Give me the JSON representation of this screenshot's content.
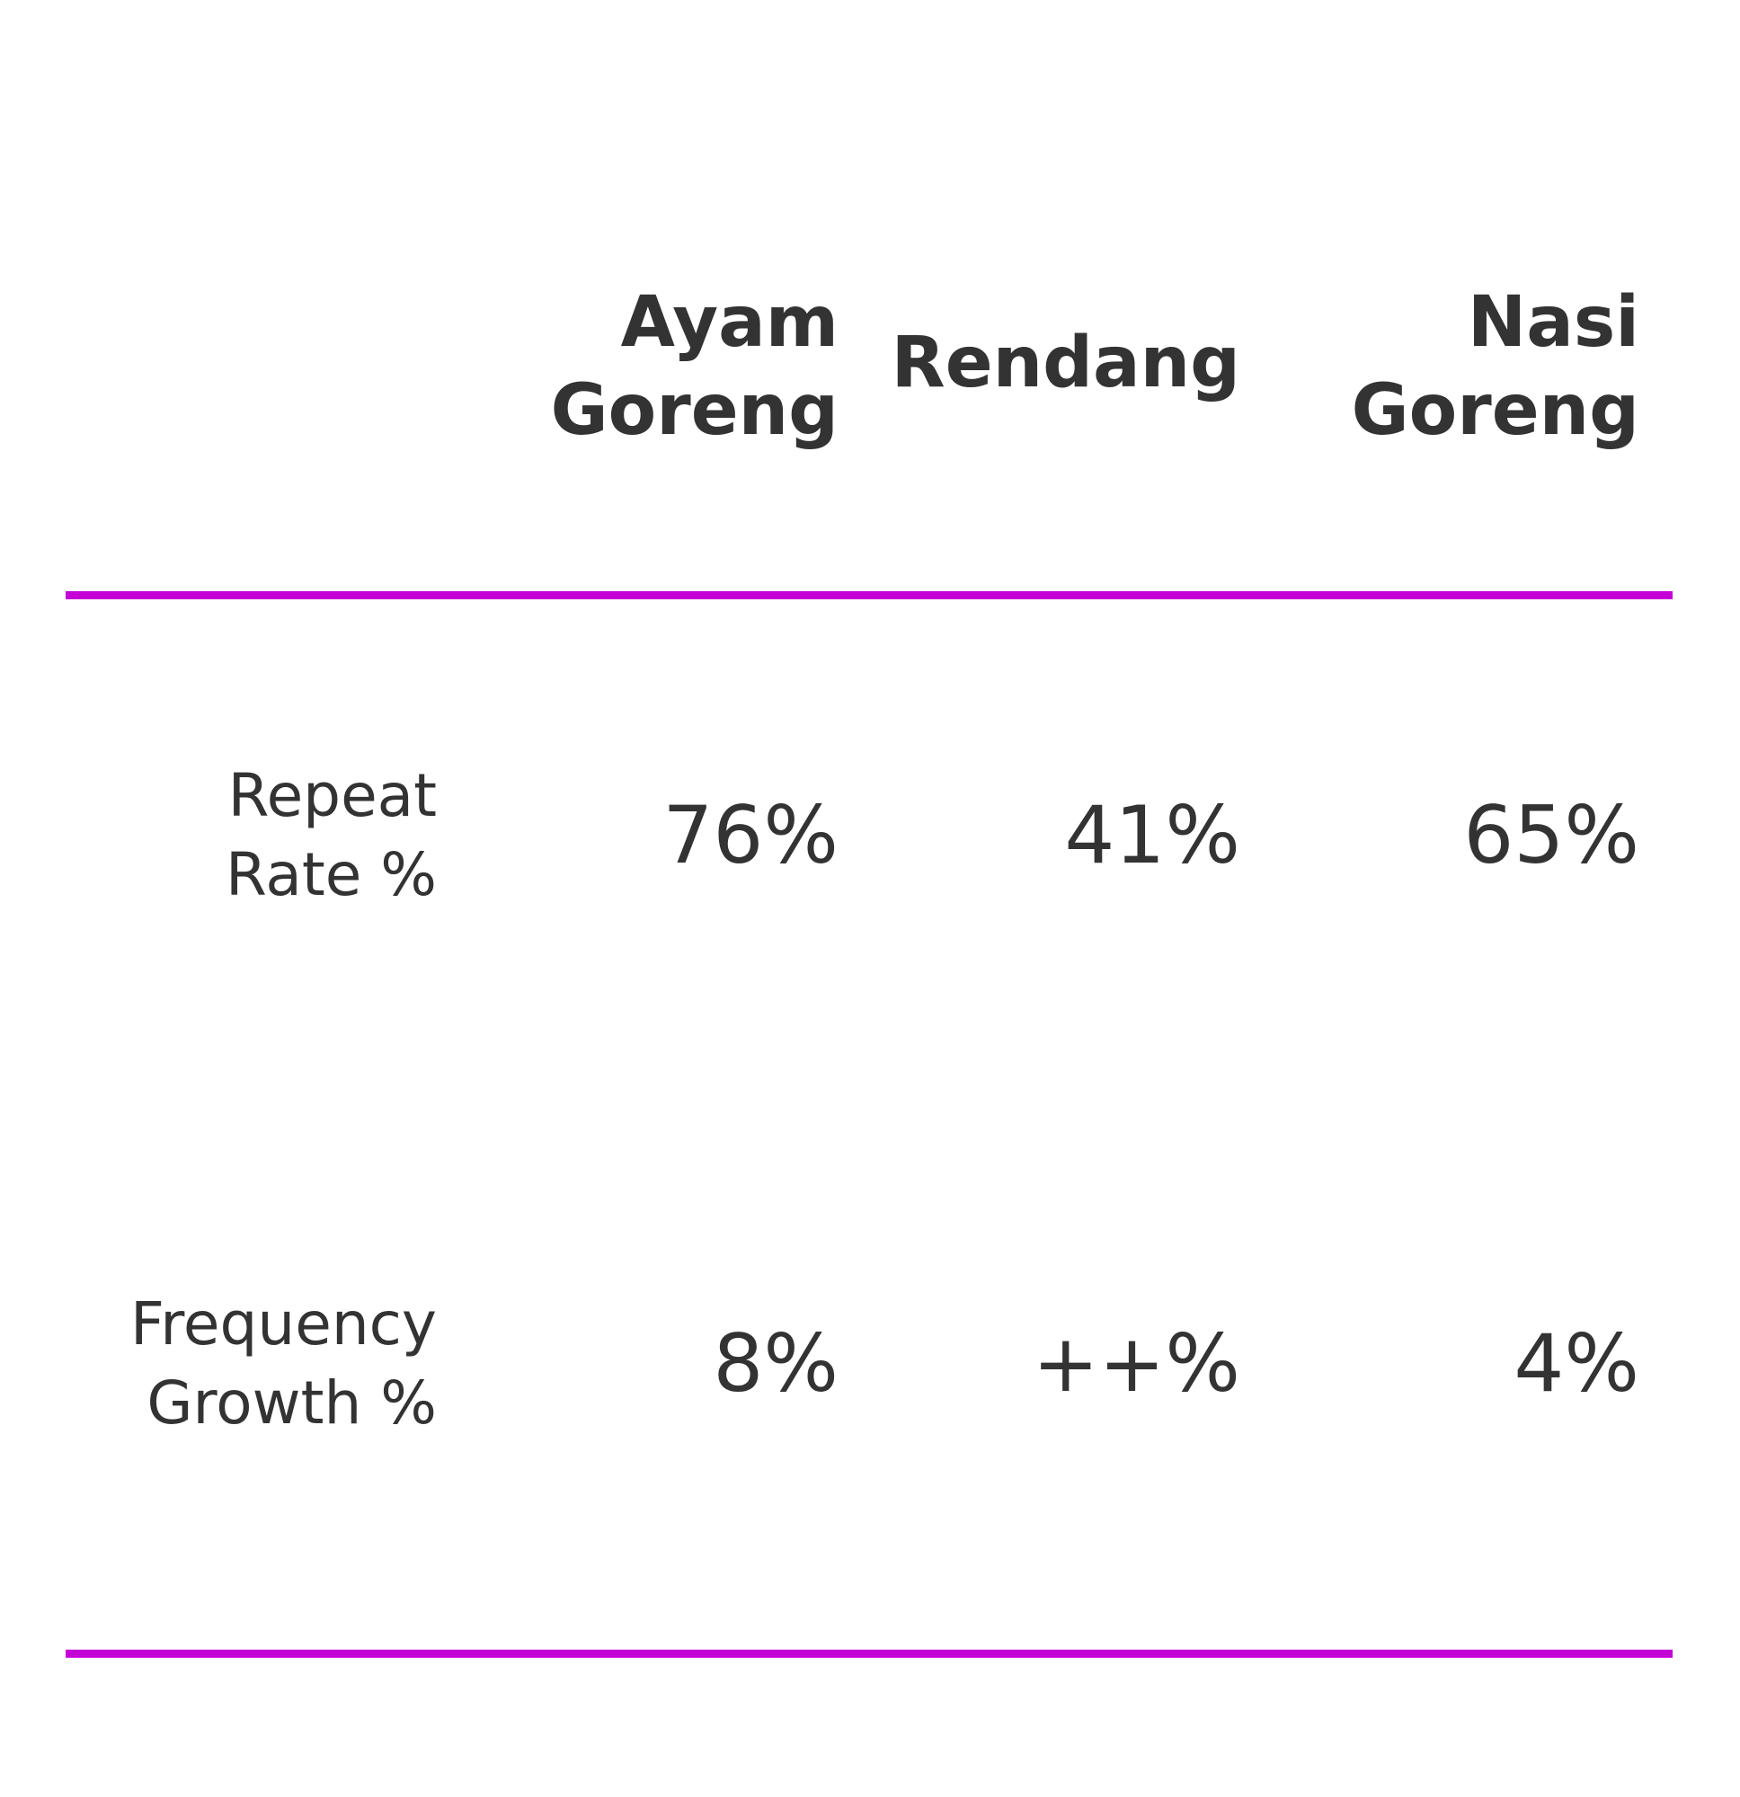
{
  "chart_data": {
    "type": "table",
    "columns": [
      {
        "line1": "Ayam",
        "line2": "Goreng"
      },
      {
        "line1": "Rendang",
        "line2": ""
      },
      {
        "line1": "Nasi",
        "line2": "Goreng"
      }
    ],
    "rows": [
      {
        "line1": "Repeat",
        "line2": "Rate %",
        "values": [
          "76%",
          "41%",
          "65%"
        ]
      },
      {
        "line1": "Frequency",
        "line2": "Growth %",
        "values": [
          "8%",
          "++%",
          "4%"
        ]
      }
    ]
  },
  "colors": {
    "rule": "#c400d6",
    "text": "#333333",
    "background": "#ffffff"
  }
}
